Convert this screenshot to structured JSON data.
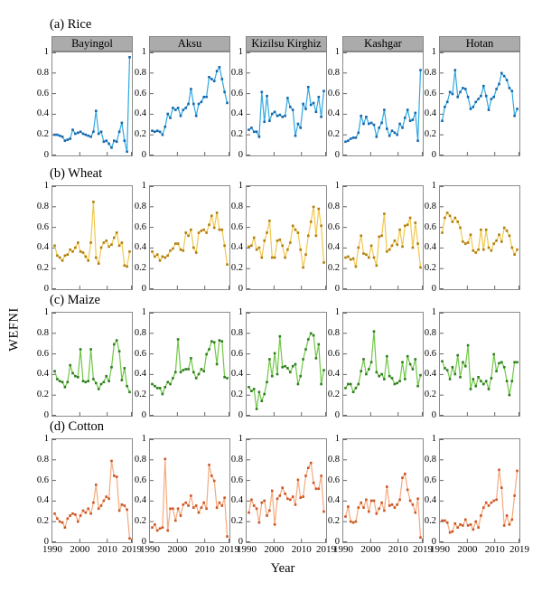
{
  "figure": {
    "ylabel": "WEFNI",
    "xlabel": "Year",
    "regions": [
      "Bayingol",
      "Aksu",
      "Kizilsu Kirghiz",
      "Kashgar",
      "Hotan"
    ],
    "rows": [
      {
        "label": "(a) Rice",
        "line_color": "#2FA9E1",
        "marker_color": "#1667AC"
      },
      {
        "label": "(b) Wheat",
        "line_color": "#F1C84D",
        "marker_color": "#B07E0A"
      },
      {
        "label": "(c) Maize",
        "line_color": "#71C747",
        "marker_color": "#2E7D1E"
      },
      {
        "label": "(d) Cotton",
        "line_color": "#F5A97E",
        "marker_color": "#CC5522"
      }
    ],
    "y_ticks": [
      "1",
      "0.8",
      "0.6",
      "0.4",
      "0.2",
      "0"
    ],
    "x_ticks": [
      "1990",
      "2000",
      "2010",
      "2019"
    ]
  },
  "chart_data": [
    {
      "type": "line",
      "crop": "Rice",
      "region": "Bayingol",
      "x_start": 1990,
      "x_end": 2019,
      "ylim": [
        0,
        1
      ],
      "line_color": "#2FA9E1",
      "marker_color": "#1667AC",
      "values": [
        0.19,
        0.19,
        0.18,
        0.17,
        0.13,
        0.14,
        0.15,
        0.24,
        0.2,
        0.21,
        0.22,
        0.2,
        0.19,
        0.18,
        0.17,
        0.22,
        0.43,
        0.2,
        0.22,
        0.12,
        0.13,
        0.1,
        0.06,
        0.13,
        0.12,
        0.22,
        0.31,
        0.13,
        0.02,
        0.97
      ]
    },
    {
      "type": "line",
      "crop": "Rice",
      "region": "Aksu",
      "x_start": 1990,
      "x_end": 2019,
      "ylim": [
        0,
        1
      ],
      "line_color": "#2FA9E1",
      "marker_color": "#1667AC",
      "values": [
        0.23,
        0.22,
        0.23,
        0.22,
        0.19,
        0.27,
        0.4,
        0.36,
        0.46,
        0.44,
        0.46,
        0.38,
        0.44,
        0.46,
        0.5,
        0.65,
        0.5,
        0.38,
        0.5,
        0.52,
        0.57,
        0.57,
        0.77,
        0.75,
        0.73,
        0.83,
        0.87,
        0.75,
        0.62,
        0.51
      ]
    },
    {
      "type": "line",
      "crop": "Rice",
      "region": "Kizilsu Kirghiz",
      "x_start": 1990,
      "x_end": 2019,
      "ylim": [
        0,
        1
      ],
      "line_color": "#2FA9E1",
      "marker_color": "#1667AC",
      "values": [
        0.24,
        0.26,
        0.22,
        0.22,
        0.17,
        0.62,
        0.32,
        0.58,
        0.33,
        0.4,
        0.42,
        0.38,
        0.39,
        0.37,
        0.38,
        0.56,
        0.47,
        0.44,
        0.18,
        0.3,
        0.26,
        0.5,
        0.45,
        0.67,
        0.49,
        0.51,
        0.42,
        0.57,
        0.37,
        0.63
      ]
    },
    {
      "type": "line",
      "crop": "Rice",
      "region": "Kashgar",
      "x_start": 1990,
      "x_end": 2019,
      "ylim": [
        0,
        1
      ],
      "line_color": "#2FA9E1",
      "marker_color": "#1667AC",
      "values": [
        0.12,
        0.13,
        0.15,
        0.16,
        0.16,
        0.21,
        0.38,
        0.3,
        0.37,
        0.3,
        0.31,
        0.29,
        0.17,
        0.26,
        0.31,
        0.44,
        0.25,
        0.18,
        0.23,
        0.21,
        0.19,
        0.3,
        0.26,
        0.36,
        0.44,
        0.33,
        0.34,
        0.41,
        0.13,
        0.84
      ]
    },
    {
      "type": "line",
      "crop": "Rice",
      "region": "Hotan",
      "x_start": 1990,
      "x_end": 2019,
      "ylim": [
        0,
        1
      ],
      "line_color": "#2FA9E1",
      "marker_color": "#1667AC",
      "values": [
        0.33,
        0.47,
        0.52,
        0.62,
        0.6,
        0.84,
        0.57,
        0.62,
        0.66,
        0.65,
        0.57,
        0.45,
        0.47,
        0.52,
        0.55,
        0.58,
        0.68,
        0.58,
        0.44,
        0.55,
        0.57,
        0.65,
        0.7,
        0.81,
        0.78,
        0.74,
        0.66,
        0.63,
        0.38,
        0.45
      ]
    },
    {
      "type": "line",
      "crop": "Wheat",
      "region": "Bayingol",
      "x_start": 1990,
      "x_end": 2019,
      "ylim": [
        0,
        1
      ],
      "line_color": "#F1C84D",
      "marker_color": "#B07E0A",
      "values": [
        0.42,
        0.32,
        0.3,
        0.27,
        0.32,
        0.33,
        0.38,
        0.36,
        0.4,
        0.45,
        0.36,
        0.35,
        0.31,
        0.27,
        0.45,
        0.86,
        0.3,
        0.24,
        0.4,
        0.45,
        0.47,
        0.41,
        0.43,
        0.5,
        0.55,
        0.42,
        0.45,
        0.22,
        0.21,
        0.36
      ]
    },
    {
      "type": "line",
      "crop": "Wheat",
      "region": "Aksu",
      "x_start": 1990,
      "x_end": 2019,
      "ylim": [
        0,
        1
      ],
      "line_color": "#F1C84D",
      "marker_color": "#B07E0A",
      "values": [
        0.36,
        0.31,
        0.33,
        0.27,
        0.31,
        0.3,
        0.32,
        0.37,
        0.39,
        0.44,
        0.44,
        0.38,
        0.37,
        0.55,
        0.52,
        0.58,
        0.4,
        0.35,
        0.55,
        0.57,
        0.58,
        0.55,
        0.63,
        0.72,
        0.6,
        0.75,
        0.58,
        0.58,
        0.42,
        0.23
      ]
    },
    {
      "type": "line",
      "crop": "Wheat",
      "region": "Kizilsu Kirghiz",
      "x_start": 1990,
      "x_end": 2019,
      "ylim": [
        0,
        1
      ],
      "line_color": "#F1C84D",
      "marker_color": "#B07E0A",
      "values": [
        0.41,
        0.42,
        0.5,
        0.38,
        0.4,
        0.3,
        0.47,
        0.55,
        0.67,
        0.3,
        0.3,
        0.47,
        0.48,
        0.42,
        0.3,
        0.38,
        0.45,
        0.62,
        0.58,
        0.55,
        0.38,
        0.2,
        0.33,
        0.52,
        0.66,
        0.81,
        0.52,
        0.79,
        0.62,
        0.25
      ]
    },
    {
      "type": "line",
      "crop": "Wheat",
      "region": "Kashgar",
      "x_start": 1990,
      "x_end": 2019,
      "ylim": [
        0,
        1
      ],
      "line_color": "#F1C84D",
      "marker_color": "#B07E0A",
      "values": [
        0.3,
        0.31,
        0.28,
        0.29,
        0.21,
        0.4,
        0.52,
        0.34,
        0.33,
        0.3,
        0.42,
        0.3,
        0.22,
        0.51,
        0.52,
        0.74,
        0.36,
        0.38,
        0.42,
        0.47,
        0.43,
        0.58,
        0.41,
        0.62,
        0.63,
        0.7,
        0.4,
        0.65,
        0.44,
        0.2
      ]
    },
    {
      "type": "line",
      "crop": "Wheat",
      "region": "Hotan",
      "x_start": 1990,
      "x_end": 2019,
      "ylim": [
        0,
        1
      ],
      "line_color": "#F1C84D",
      "marker_color": "#B07E0A",
      "values": [
        0.55,
        0.7,
        0.75,
        0.72,
        0.66,
        0.7,
        0.66,
        0.6,
        0.46,
        0.44,
        0.45,
        0.53,
        0.37,
        0.35,
        0.38,
        0.58,
        0.38,
        0.58,
        0.4,
        0.37,
        0.44,
        0.47,
        0.53,
        0.46,
        0.6,
        0.57,
        0.52,
        0.4,
        0.33,
        0.38
      ]
    },
    {
      "type": "line",
      "crop": "Maize",
      "region": "Bayingol",
      "x_start": 1990,
      "x_end": 2019,
      "ylim": [
        0,
        1
      ],
      "line_color": "#71C747",
      "marker_color": "#2E7D1E",
      "values": [
        0.43,
        0.35,
        0.33,
        0.32,
        0.27,
        0.32,
        0.49,
        0.41,
        0.38,
        0.37,
        0.65,
        0.33,
        0.32,
        0.33,
        0.65,
        0.35,
        0.31,
        0.25,
        0.3,
        0.32,
        0.38,
        0.33,
        0.47,
        0.7,
        0.74,
        0.63,
        0.34,
        0.46,
        0.28,
        0.22
      ]
    },
    {
      "type": "line",
      "crop": "Maize",
      "region": "Aksu",
      "x_start": 1990,
      "x_end": 2019,
      "ylim": [
        0,
        1
      ],
      "line_color": "#71C747",
      "marker_color": "#2E7D1E",
      "values": [
        0.3,
        0.28,
        0.26,
        0.26,
        0.2,
        0.27,
        0.32,
        0.3,
        0.36,
        0.42,
        0.75,
        0.42,
        0.44,
        0.45,
        0.45,
        0.56,
        0.42,
        0.36,
        0.4,
        0.45,
        0.43,
        0.6,
        0.65,
        0.73,
        0.72,
        0.5,
        0.74,
        0.73,
        0.37,
        0.36
      ]
    },
    {
      "type": "line",
      "crop": "Maize",
      "region": "Kizilsu Kirghiz",
      "x_start": 1990,
      "x_end": 2019,
      "ylim": [
        0,
        1
      ],
      "line_color": "#71C747",
      "marker_color": "#2E7D1E",
      "values": [
        0.27,
        0.23,
        0.25,
        0.05,
        0.22,
        0.13,
        0.2,
        0.32,
        0.55,
        0.38,
        0.61,
        0.4,
        0.78,
        0.47,
        0.48,
        0.46,
        0.42,
        0.48,
        0.5,
        0.3,
        0.38,
        0.55,
        0.65,
        0.75,
        0.81,
        0.79,
        0.56,
        0.7,
        0.3,
        0.44
      ]
    },
    {
      "type": "line",
      "crop": "Maize",
      "region": "Kashgar",
      "x_start": 1990,
      "x_end": 2019,
      "ylim": [
        0,
        1
      ],
      "line_color": "#71C747",
      "marker_color": "#2E7D1E",
      "values": [
        0.26,
        0.3,
        0.3,
        0.22,
        0.26,
        0.3,
        0.43,
        0.55,
        0.4,
        0.45,
        0.52,
        0.83,
        0.42,
        0.38,
        0.4,
        0.35,
        0.58,
        0.38,
        0.36,
        0.3,
        0.31,
        0.33,
        0.52,
        0.35,
        0.58,
        0.5,
        0.45,
        0.55,
        0.28,
        0.39
      ]
    },
    {
      "type": "line",
      "crop": "Maize",
      "region": "Hotan",
      "x_start": 1990,
      "x_end": 2019,
      "ylim": [
        0,
        1
      ],
      "line_color": "#71C747",
      "marker_color": "#2E7D1E",
      "values": [
        0.53,
        0.46,
        0.44,
        0.35,
        0.47,
        0.4,
        0.59,
        0.37,
        0.52,
        0.48,
        0.69,
        0.25,
        0.35,
        0.28,
        0.37,
        0.33,
        0.3,
        0.33,
        0.25,
        0.36,
        0.6,
        0.43,
        0.51,
        0.52,
        0.47,
        0.33,
        0.19,
        0.33,
        0.52,
        0.52
      ]
    },
    {
      "type": "line",
      "crop": "Cotton",
      "region": "Bayingol",
      "x_start": 1990,
      "x_end": 2019,
      "ylim": [
        0,
        1
      ],
      "line_color": "#F5A97E",
      "marker_color": "#CC5522",
      "values": [
        0.27,
        0.22,
        0.19,
        0.18,
        0.13,
        0.22,
        0.25,
        0.27,
        0.26,
        0.19,
        0.25,
        0.3,
        0.28,
        0.32,
        0.27,
        0.38,
        0.56,
        0.32,
        0.35,
        0.4,
        0.44,
        0.42,
        0.8,
        0.65,
        0.64,
        0.3,
        0.36,
        0.35,
        0.31,
        0.02
      ]
    },
    {
      "type": "line",
      "crop": "Cotton",
      "region": "Aksu",
      "x_start": 1990,
      "x_end": 2019,
      "ylim": [
        0,
        1
      ],
      "line_color": "#F5A97E",
      "marker_color": "#CC5522",
      "values": [
        0.13,
        0.16,
        0.1,
        0.12,
        0.13,
        0.82,
        0.1,
        0.32,
        0.32,
        0.2,
        0.32,
        0.25,
        0.36,
        0.38,
        0.35,
        0.45,
        0.33,
        0.35,
        0.28,
        0.33,
        0.38,
        0.32,
        0.76,
        0.65,
        0.6,
        0.33,
        0.38,
        0.35,
        0.43,
        0.04
      ]
    },
    {
      "type": "line",
      "crop": "Cotton",
      "region": "Kizilsu Kirghiz",
      "x_start": 1990,
      "x_end": 2019,
      "ylim": [
        0,
        1
      ],
      "line_color": "#F5A97E",
      "marker_color": "#CC5522",
      "values": [
        0.28,
        0.41,
        0.35,
        0.32,
        0.18,
        0.38,
        0.4,
        0.25,
        0.3,
        0.5,
        0.16,
        0.42,
        0.45,
        0.53,
        0.47,
        0.42,
        0.41,
        0.44,
        0.36,
        0.61,
        0.43,
        0.44,
        0.65,
        0.73,
        0.78,
        0.58,
        0.52,
        0.52,
        0.65,
        0.29
      ]
    },
    {
      "type": "line",
      "crop": "Cotton",
      "region": "Kashgar",
      "x_start": 1990,
      "x_end": 2019,
      "ylim": [
        0,
        1
      ],
      "line_color": "#F5A97E",
      "marker_color": "#CC5522",
      "values": [
        0.24,
        0.34,
        0.19,
        0.18,
        0.19,
        0.33,
        0.38,
        0.33,
        0.41,
        0.29,
        0.4,
        0.4,
        0.27,
        0.32,
        0.38,
        0.3,
        0.54,
        0.35,
        0.36,
        0.33,
        0.36,
        0.41,
        0.63,
        0.67,
        0.51,
        0.4,
        0.36,
        0.28,
        0.42,
        0.03
      ]
    },
    {
      "type": "line",
      "crop": "Cotton",
      "region": "Hotan",
      "x_start": 1990,
      "x_end": 2019,
      "ylim": [
        0,
        1
      ],
      "line_color": "#F5A97E",
      "marker_color": "#CC5522",
      "values": [
        0.2,
        0.2,
        0.18,
        0.08,
        0.09,
        0.17,
        0.13,
        0.16,
        0.15,
        0.21,
        0.15,
        0.16,
        0.11,
        0.19,
        0.13,
        0.25,
        0.33,
        0.38,
        0.35,
        0.38,
        0.4,
        0.41,
        0.71,
        0.53,
        0.15,
        0.25,
        0.16,
        0.21,
        0.45,
        0.7
      ]
    }
  ]
}
